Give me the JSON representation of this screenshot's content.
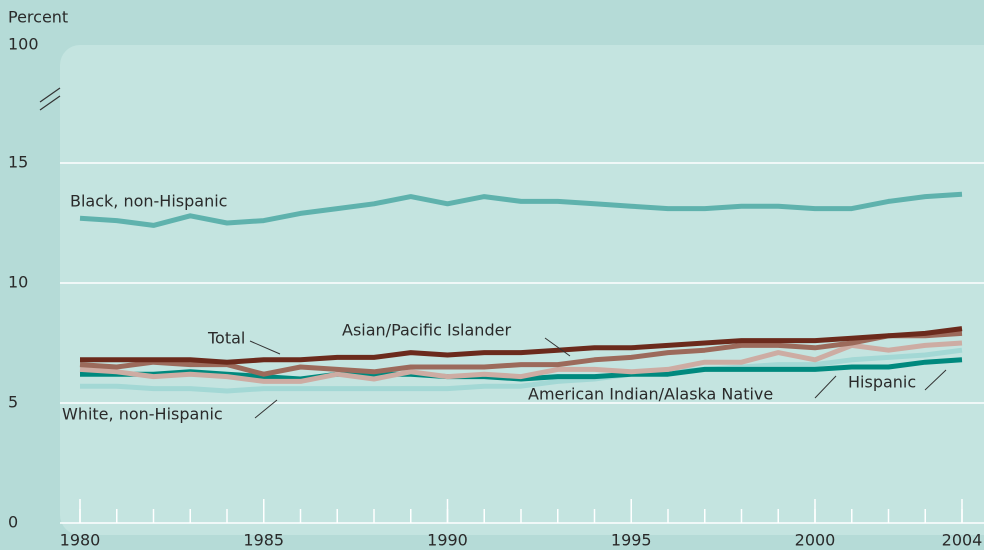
{
  "chart_data": {
    "type": "line",
    "y_label": "Percent",
    "x": [
      1980,
      1981,
      1982,
      1983,
      1984,
      1985,
      1986,
      1987,
      1988,
      1989,
      1990,
      1991,
      1992,
      1993,
      1994,
      1995,
      1996,
      1997,
      1998,
      1999,
      2000,
      2001,
      2002,
      2003,
      2004
    ],
    "xlim": [
      1980,
      2004
    ],
    "xticks": [
      1980,
      1985,
      1990,
      1995,
      2000,
      2004
    ],
    "ylim": [
      0,
      100
    ],
    "yticks": [
      0,
      5,
      10,
      15,
      100
    ],
    "grid": true,
    "series": [
      {
        "name": "Black, non-Hispanic",
        "color": "#5fb2ad",
        "values": [
          12.7,
          12.6,
          12.4,
          12.8,
          12.5,
          12.6,
          12.9,
          13.1,
          13.3,
          13.6,
          13.3,
          13.6,
          13.4,
          13.4,
          13.3,
          13.2,
          13.1,
          13.1,
          13.2,
          13.2,
          13.1,
          13.1,
          13.4,
          13.6,
          13.7
        ]
      },
      {
        "name": "White, non-Hispanic",
        "color": "#a3d8d5",
        "values": [
          5.7,
          5.7,
          5.6,
          5.6,
          5.5,
          5.6,
          5.6,
          5.6,
          5.6,
          5.6,
          5.6,
          5.7,
          5.7,
          5.9,
          6.0,
          6.2,
          6.3,
          6.4,
          6.5,
          6.6,
          6.6,
          6.8,
          6.9,
          7.0,
          7.2
        ]
      },
      {
        "name": "American Indian/Alaska Native",
        "color": "#00897e",
        "values": [
          6.2,
          6.2,
          6.2,
          6.3,
          6.2,
          6.1,
          6.0,
          6.2,
          6.2,
          6.2,
          6.1,
          6.1,
          6.0,
          6.1,
          6.1,
          6.2,
          6.2,
          6.4,
          6.4,
          6.4,
          6.4,
          6.5,
          6.5,
          6.7,
          6.8
        ]
      },
      {
        "name": "Hispanic",
        "color": "#cdaca3",
        "values": [
          6.4,
          6.3,
          6.1,
          6.2,
          6.1,
          5.9,
          5.9,
          6.2,
          6.0,
          6.3,
          6.1,
          6.2,
          6.1,
          6.4,
          6.4,
          6.3,
          6.4,
          6.7,
          6.7,
          7.1,
          6.8,
          7.4,
          7.2,
          7.4,
          7.5
        ]
      },
      {
        "name": "Asian/Pacific Islander",
        "color": "#9c6a5b",
        "values": [
          6.6,
          6.5,
          6.7,
          6.6,
          6.6,
          6.2,
          6.5,
          6.4,
          6.3,
          6.5,
          6.5,
          6.5,
          6.6,
          6.6,
          6.8,
          6.9,
          7.1,
          7.2,
          7.4,
          7.4,
          7.3,
          7.5,
          7.8,
          7.8,
          7.9
        ]
      },
      {
        "name": "Total",
        "color": "#6b2a1c",
        "values": [
          6.8,
          6.8,
          6.8,
          6.8,
          6.7,
          6.8,
          6.8,
          6.9,
          6.9,
          7.1,
          7.0,
          7.1,
          7.1,
          7.2,
          7.3,
          7.3,
          7.4,
          7.5,
          7.6,
          7.6,
          7.6,
          7.7,
          7.8,
          7.9,
          8.1
        ]
      }
    ]
  }
}
